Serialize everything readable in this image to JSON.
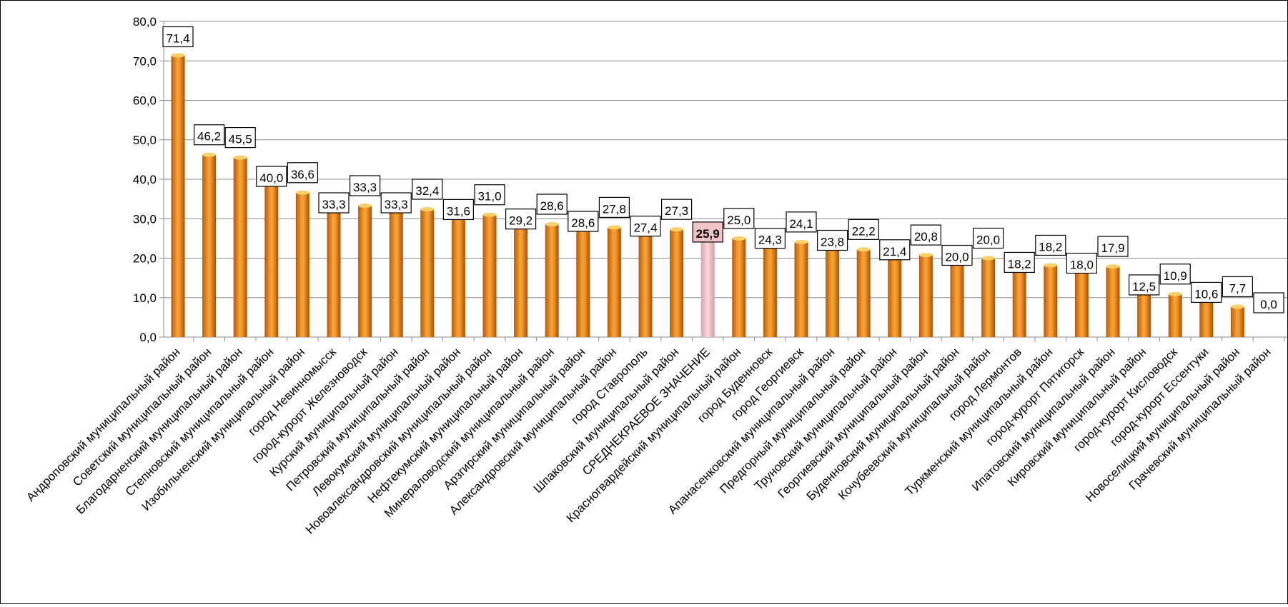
{
  "chart_data": {
    "type": "bar",
    "title": "",
    "xlabel": "",
    "ylabel": "",
    "ylim": [
      0,
      80
    ],
    "yticks": [
      "0,0",
      "10,0",
      "20,0",
      "30,0",
      "40,0",
      "50,0",
      "60,0",
      "70,0",
      "80,0"
    ],
    "grid": true,
    "legend": "none",
    "colors": {
      "bar": "#f0891e",
      "bar_highlight": "#f2c4c8",
      "label_highlight_bg": "#f2c4c8"
    },
    "highlight_index": 17,
    "categories": [
      "Андроповский муниципальный район",
      "Советский муниципальный район",
      "Благодарненский муниципальный район",
      "Степновский муниципальный район",
      "Изобильненский муниципальный район",
      "город Невинномысск",
      "город-курорт Железноводск",
      "Курский муниципальный район",
      "Петровский муниципальный район",
      "Левокумский муниципальный район",
      "Новоалександровский муниципальный район",
      "Нефтекумский муниципальный район",
      "Минераловодский муниципальный район",
      "Арзгирский муниципальный район",
      "Александровский муниципальный район",
      "город Ставрополь",
      "Шпаковский муниципальный район",
      "СРЕДНЕКРАЕВОЕ ЗНАЧЕНИЕ",
      "Красногвардейский муниципальный район",
      "город Буденновск",
      "город Георгиевск",
      "Апанасенковский муниципальный район",
      "Предгорный муниципальный район",
      "Труновский муниципальный район",
      "Георгиевский муниципальный район",
      "Буденновский муниципальный район",
      "Кочубеевский муниципальный район",
      "город Лермонтов",
      "Туркменский муниципальный район",
      "город-курорт Пятигорск",
      "Ипатовский муниципальный район",
      "Кировский муниципальный район",
      "город-курорт Кисловодск",
      "город-курорт Ессентуки",
      "Новоселицкий муниципальный район",
      "Грачевский муниципальный район"
    ],
    "values": [
      71.4,
      46.2,
      45.5,
      40.0,
      36.6,
      33.3,
      33.3,
      33.3,
      32.4,
      31.6,
      31.0,
      29.2,
      28.6,
      28.6,
      27.8,
      27.4,
      27.3,
      25.9,
      25.0,
      24.3,
      24.1,
      23.8,
      22.2,
      21.4,
      20.8,
      20.0,
      20.0,
      18.2,
      18.2,
      18.0,
      17.9,
      12.5,
      10.9,
      10.6,
      7.7,
      0.0
    ],
    "value_labels": [
      "71,4",
      "46,2",
      "45,5",
      "40,0",
      "36,6",
      "33,3",
      "33,3",
      "33,3",
      "32,4",
      "31,6",
      "31,0",
      "29,2",
      "28,6",
      "28,6",
      "27,8",
      "27,4",
      "27,3",
      "25,9",
      "25,0",
      "24,3",
      "24,1",
      "23,8",
      "22,2",
      "21,4",
      "20,8",
      "20,0",
      "20,0",
      "18,2",
      "18,2",
      "18,0",
      "17,9",
      "12,5",
      "10,9",
      "10,6",
      "7,7",
      "0,0"
    ]
  }
}
